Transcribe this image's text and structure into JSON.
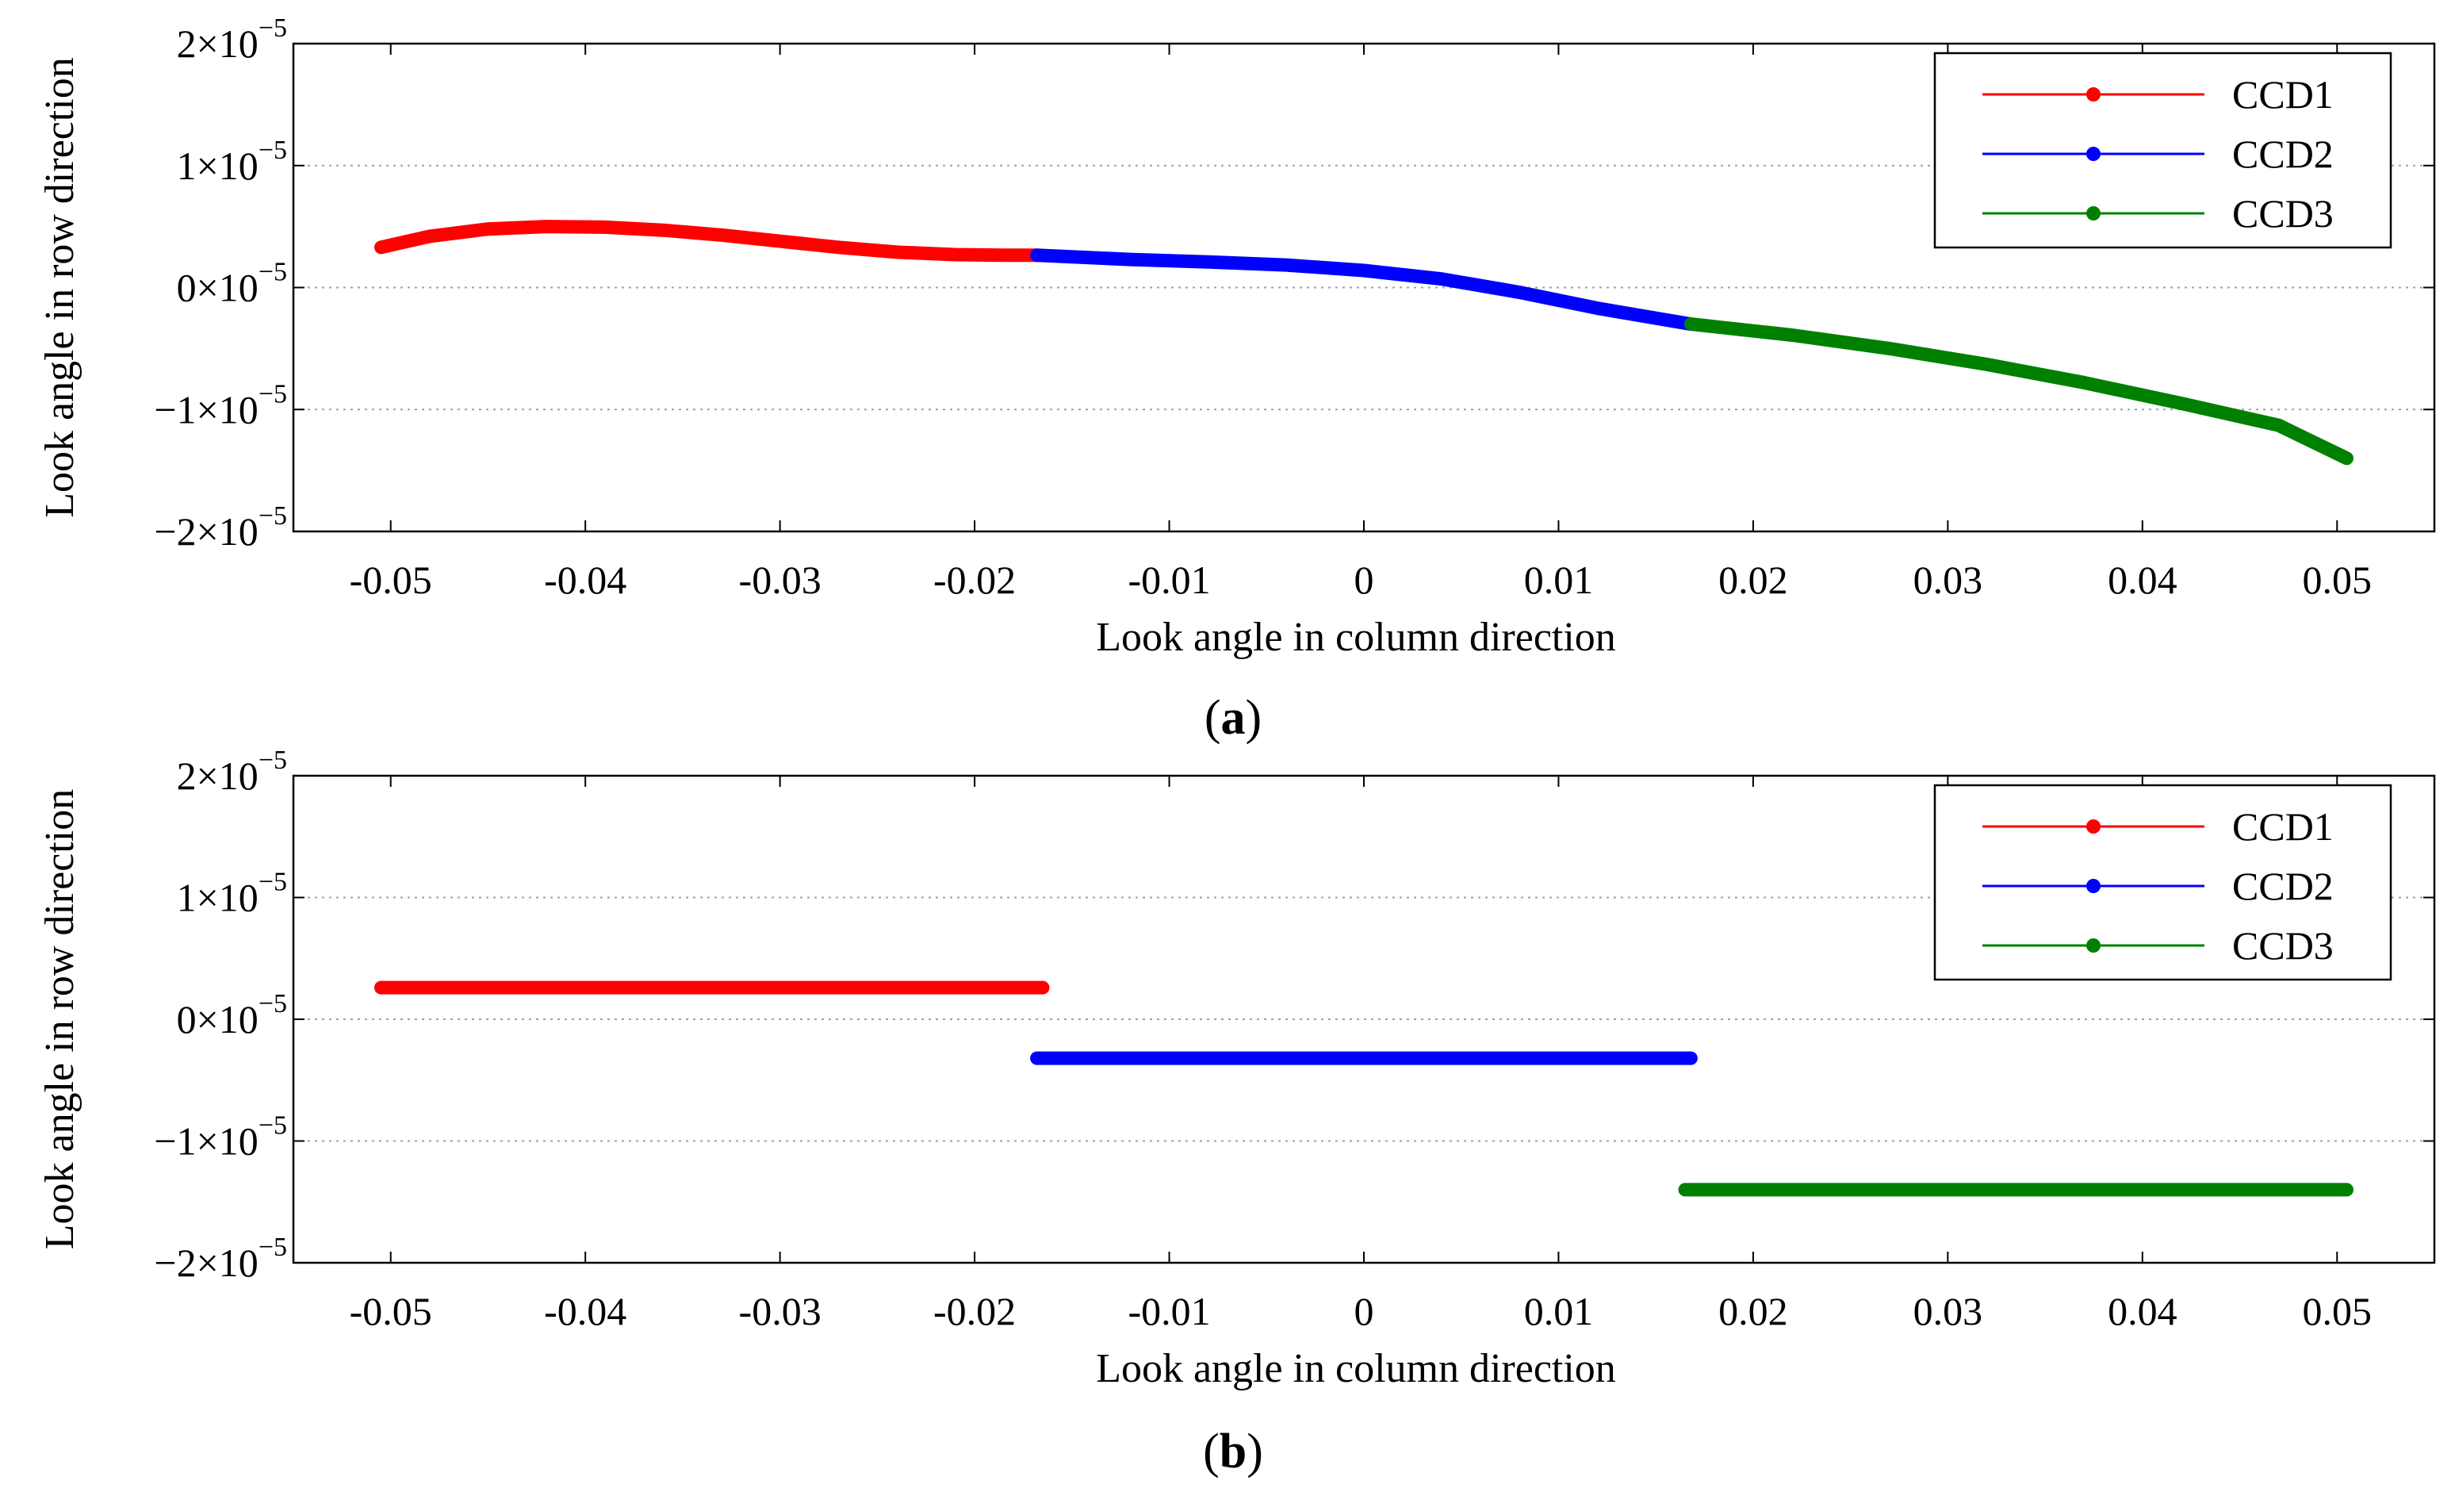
{
  "chart_data": [
    {
      "type": "line",
      "caption_label": "a",
      "xlabel": "Look angle in column direction",
      "ylabel": "Look angle  in row direction",
      "xlim": [
        -0.055,
        0.055
      ],
      "ylim": [
        -2e-05,
        2e-05
      ],
      "grid": "horizontal-dotted",
      "xticks": [
        -0.05,
        -0.04,
        -0.03,
        -0.02,
        -0.01,
        0,
        0.01,
        0.02,
        0.03,
        0.04,
        0.05
      ],
      "xtick_labels": [
        "-0.05",
        "-0.04",
        "-0.03",
        "-0.02",
        "-0.01",
        "0",
        "0.01",
        "0.02",
        "0.03",
        "0.04",
        "0.05"
      ],
      "yticks": [
        2e-05,
        1e-05,
        0,
        -1e-05,
        -2e-05
      ],
      "ytick_labels": [
        {
          "mantissa": "2×10",
          "exponent": "−5"
        },
        {
          "mantissa": "1×10",
          "exponent": "−5"
        },
        {
          "mantissa": "0×10",
          "exponent": "−5"
        },
        {
          "mantissa": "−1×10",
          "exponent": "−5"
        },
        {
          "mantissa": "−2×10",
          "exponent": "−5"
        }
      ],
      "legend_position": "top-right",
      "series": [
        {
          "name": "CCD1",
          "color": "#ff0000",
          "x": [
            -0.0505,
            -0.048,
            -0.045,
            -0.042,
            -0.039,
            -0.036,
            -0.033,
            -0.03,
            -0.027,
            -0.024,
            -0.021,
            -0.0185,
            -0.0168
          ],
          "y": [
            3.3e-06,
            4.2e-06,
            4.8e-06,
            5e-06,
            4.95e-06,
            4.7e-06,
            4.3e-06,
            3.8e-06,
            3.3e-06,
            2.9e-06,
            2.7e-06,
            2.65e-06,
            2.65e-06
          ]
        },
        {
          "name": "CCD2",
          "color": "#0000ff",
          "x": [
            -0.0168,
            -0.012,
            -0.008,
            -0.004,
            0,
            0.004,
            0.008,
            0.012,
            0.0168
          ],
          "y": [
            2.65e-06,
            2.3e-06,
            2.1e-06,
            1.85e-06,
            1.4e-06,
            7e-07,
            -4e-07,
            -1.7e-06,
            -3e-06
          ]
        },
        {
          "name": "CCD3",
          "color": "#008000",
          "x": [
            0.0168,
            0.022,
            0.027,
            0.032,
            0.037,
            0.042,
            0.047,
            0.0505
          ],
          "y": [
            -3e-06,
            -3.9e-06,
            -5e-06,
            -6.3e-06,
            -7.8e-06,
            -9.5e-06,
            -1.13e-05,
            -1.4e-05
          ]
        }
      ]
    },
    {
      "type": "line",
      "caption_label": "b",
      "xlabel": "Look angle in column direction",
      "ylabel": "Look angle  in row direction",
      "xlim": [
        -0.055,
        0.055
      ],
      "ylim": [
        -2e-05,
        2e-05
      ],
      "grid": "horizontal-dotted",
      "xticks": [
        -0.05,
        -0.04,
        -0.03,
        -0.02,
        -0.01,
        0,
        0.01,
        0.02,
        0.03,
        0.04,
        0.05
      ],
      "xtick_labels": [
        "-0.05",
        "-0.04",
        "-0.03",
        "-0.02",
        "-0.01",
        "0",
        "0.01",
        "0.02",
        "0.03",
        "0.04",
        "0.05"
      ],
      "yticks": [
        2e-05,
        1e-05,
        0,
        -1e-05,
        -2e-05
      ],
      "ytick_labels": [
        {
          "mantissa": "2×10",
          "exponent": "−5"
        },
        {
          "mantissa": "1×10",
          "exponent": "−5"
        },
        {
          "mantissa": "0×10",
          "exponent": "−5"
        },
        {
          "mantissa": "−1×10",
          "exponent": "−5"
        },
        {
          "mantissa": "−2×10",
          "exponent": "−5"
        }
      ],
      "legend_position": "top-right",
      "series": [
        {
          "name": "CCD1",
          "color": "#ff0000",
          "x": [
            -0.0505,
            -0.0165
          ],
          "y": [
            2.6e-06,
            2.6e-06
          ]
        },
        {
          "name": "CCD2",
          "color": "#0000ff",
          "x": [
            -0.0168,
            0.0168
          ],
          "y": [
            -3.2e-06,
            -3.2e-06
          ]
        },
        {
          "name": "CCD3",
          "color": "#008000",
          "x": [
            0.0165,
            0.0505
          ],
          "y": [
            -1.4e-05,
            -1.4e-05
          ]
        }
      ]
    }
  ]
}
